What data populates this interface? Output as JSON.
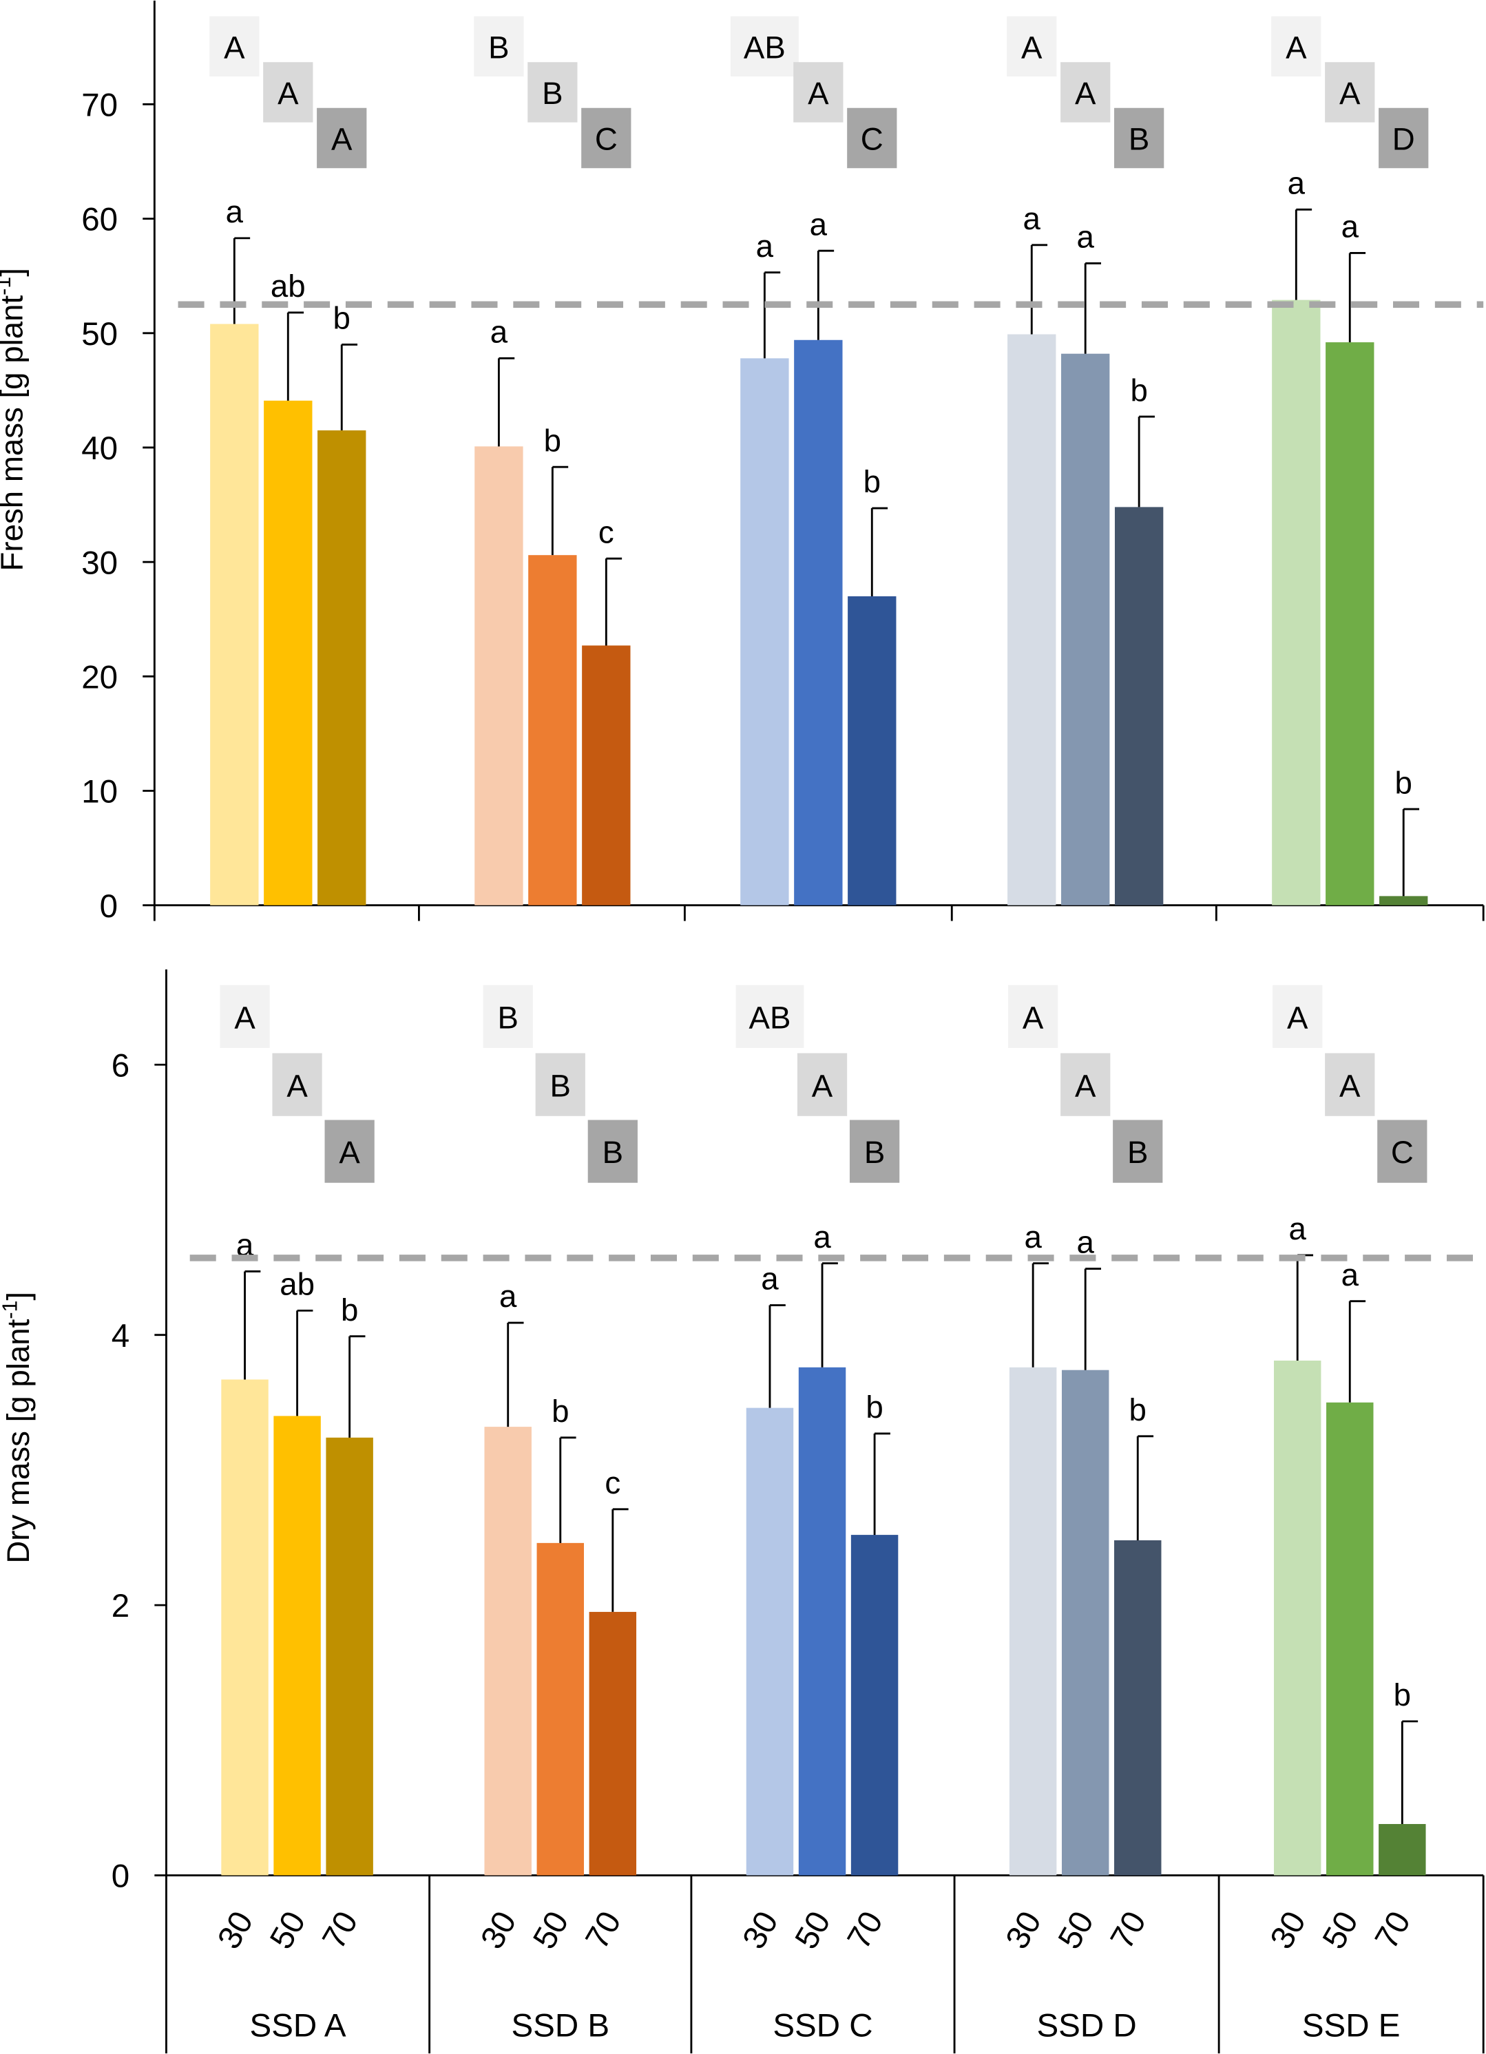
{
  "chart_data": [
    {
      "type": "bar",
      "id": "fresh",
      "ylabel": "Fresh mass [g plant",
      "ylabel_sup": "-1",
      "ylabel_end": "]",
      "ylim": [
        0,
        77
      ],
      "yticks": [
        0,
        10,
        20,
        30,
        40,
        50,
        60,
        70
      ],
      "reference_line": 52.5,
      "groups": [
        {
          "name": "SSD A",
          "values": [
            50.8,
            44.1,
            41.5
          ],
          "errors_upper": [
            58.3,
            51.8,
            49.0
          ],
          "letters": [
            "a",
            "ab",
            "b"
          ],
          "group_letters": [
            "A",
            "A",
            "A"
          ]
        },
        {
          "name": "SSD B",
          "values": [
            40.1,
            30.6,
            22.7
          ],
          "errors_upper": [
            47.8,
            38.3,
            30.3
          ],
          "letters": [
            "a",
            "b",
            "c"
          ],
          "group_letters": [
            "B",
            "B",
            "C"
          ]
        },
        {
          "name": "SSD C",
          "values": [
            47.8,
            49.4,
            27.0
          ],
          "errors_upper": [
            55.3,
            57.2,
            34.7
          ],
          "letters": [
            "a",
            "a",
            "b"
          ],
          "group_letters": [
            "AB",
            "A",
            "C"
          ]
        },
        {
          "name": "SSD D",
          "values": [
            49.9,
            48.2,
            34.8
          ],
          "errors_upper": [
            57.7,
            56.1,
            42.7
          ],
          "letters": [
            "a",
            "a",
            "b"
          ],
          "group_letters": [
            "A",
            "A",
            "B"
          ]
        },
        {
          "name": "SSD E",
          "values": [
            52.9,
            49.2,
            0.8
          ],
          "errors_upper": [
            60.8,
            57.0,
            8.4
          ],
          "letters": [
            "a",
            "a",
            "b"
          ],
          "group_letters": [
            "A",
            "A",
            "D"
          ]
        }
      ]
    },
    {
      "type": "bar",
      "id": "dry",
      "ylabel": "Dry mass [g plant",
      "ylabel_sup": "-1",
      "ylabel_end": "]",
      "ylim": [
        0,
        6.7
      ],
      "yticks": [
        0,
        2,
        4,
        6
      ],
      "reference_line": 4.57,
      "groups": [
        {
          "name": "SSD A",
          "values": [
            3.67,
            3.4,
            3.24
          ],
          "errors_upper": [
            4.47,
            4.18,
            3.99
          ],
          "letters": [
            "a",
            "ab",
            "b"
          ],
          "group_letters": [
            "A",
            "A",
            "A"
          ]
        },
        {
          "name": "SSD B",
          "values": [
            3.32,
            2.46,
            1.95
          ],
          "errors_upper": [
            4.09,
            3.24,
            2.71
          ],
          "letters": [
            "a",
            "b",
            "c"
          ],
          "group_letters": [
            "B",
            "B",
            "B"
          ]
        },
        {
          "name": "SSD C",
          "values": [
            3.46,
            3.76,
            2.52
          ],
          "errors_upper": [
            4.22,
            4.53,
            3.27
          ],
          "letters": [
            "a",
            "a",
            "b"
          ],
          "group_letters": [
            "AB",
            "A",
            "B"
          ]
        },
        {
          "name": "SSD D",
          "values": [
            3.76,
            3.74,
            2.48
          ],
          "errors_upper": [
            4.53,
            4.49,
            3.25
          ],
          "letters": [
            "a",
            "a",
            "b"
          ],
          "group_letters": [
            "A",
            "A",
            "B"
          ]
        },
        {
          "name": "SSD E",
          "values": [
            3.81,
            3.5,
            0.38
          ],
          "errors_upper": [
            4.59,
            4.25,
            1.14
          ],
          "letters": [
            "a",
            "a",
            "b"
          ],
          "group_letters": [
            "A",
            "A",
            "C"
          ]
        }
      ]
    }
  ],
  "x_sublabels": [
    "30",
    "50",
    "70"
  ],
  "group_names": [
    "SSD A",
    "SSD B",
    "SSD C",
    "SSD D",
    "SSD E"
  ],
  "colors": {
    "SSD A": [
      "#ffe699",
      "#ffc000",
      "#bf9000"
    ],
    "SSD B": [
      "#f8cbad",
      "#ed7d31",
      "#c55a11"
    ],
    "SSD C": [
      "#b4c7e7",
      "#4472c4",
      "#2f5597"
    ],
    "SSD D": [
      "#d6dce5",
      "#8497b0",
      "#44546a"
    ],
    "SSD E": [
      "#c5e0b4",
      "#70ad47",
      "#548235"
    ],
    "letter_boxes": [
      "#f2f2f2",
      "#d9d9d9",
      "#a6a6a6"
    ],
    "reference_line": "#a6a6a6"
  }
}
